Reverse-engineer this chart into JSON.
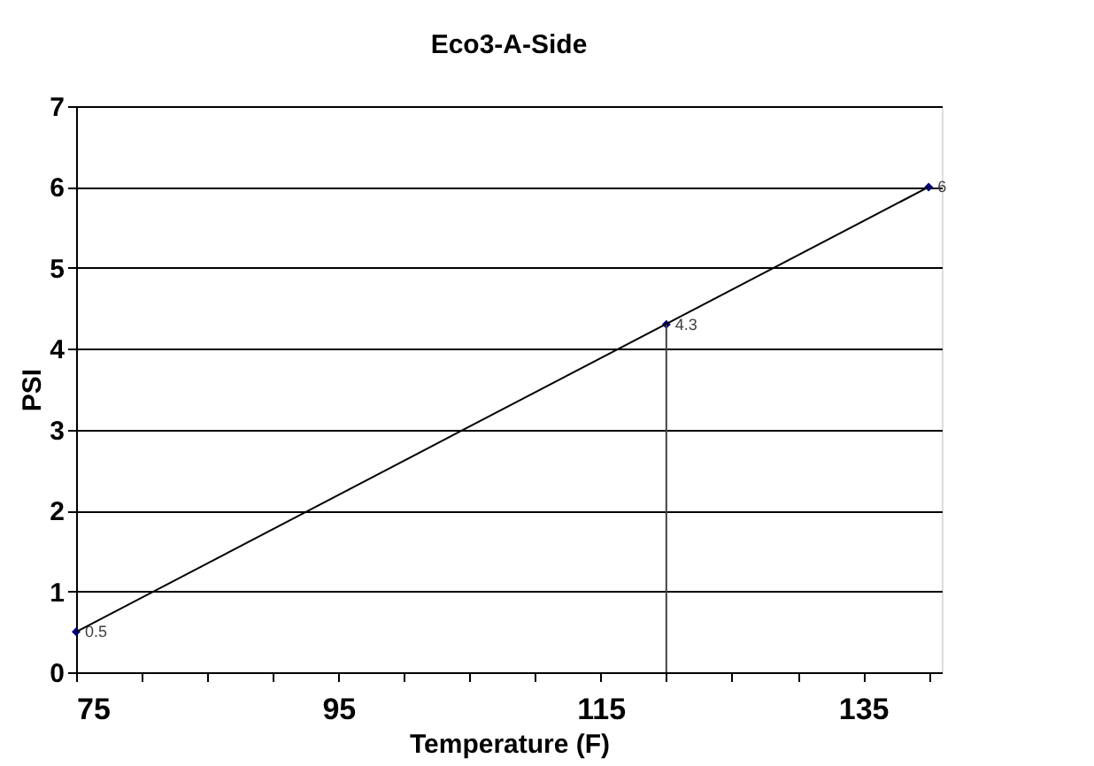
{
  "chart_data": {
    "type": "scatter",
    "title": "Eco3-A-Side",
    "xlabel": "Temperature (F)",
    "ylabel": "PSI",
    "series": [
      {
        "color": "#000080",
        "x": [
          75,
          120,
          140
        ],
        "values": [
          0.5,
          4.3,
          6
        ],
        "value_labels": [
          "0.5",
          "4.3",
          "6"
        ],
        "marker": "diamond"
      },
      {
        "type": "line",
        "color": "#000000",
        "x": [
          75,
          140
        ],
        "values": [
          0.5,
          6
        ],
        "marker": "none",
        "line_style": "solid"
      },
      {
        "type": "line",
        "color": "#404040",
        "x": [
          120,
          120
        ],
        "values": [
          0,
          4.3
        ],
        "marker": "none",
        "line_style": "solid"
      }
    ],
    "xlim": [
      75,
      141
    ],
    "xticks": [
      75,
      {
        "value": 80,
        "label": null
      },
      {
        "value": 85,
        "label": null
      },
      {
        "value": 90,
        "label": null
      },
      95,
      {
        "value": 100,
        "label": null
      },
      {
        "value": 105,
        "label": null
      },
      {
        "value": 110,
        "label": null
      },
      115,
      {
        "value": 120,
        "label": null
      },
      {
        "value": 125,
        "label": null
      },
      {
        "value": 130,
        "label": null
      },
      135,
      {
        "value": 140,
        "label": null
      }
    ],
    "ylim": [
      0,
      7
    ],
    "yticks": [
      0,
      1,
      2,
      3,
      4,
      5,
      6,
      7
    ],
    "grid": "y"
  }
}
